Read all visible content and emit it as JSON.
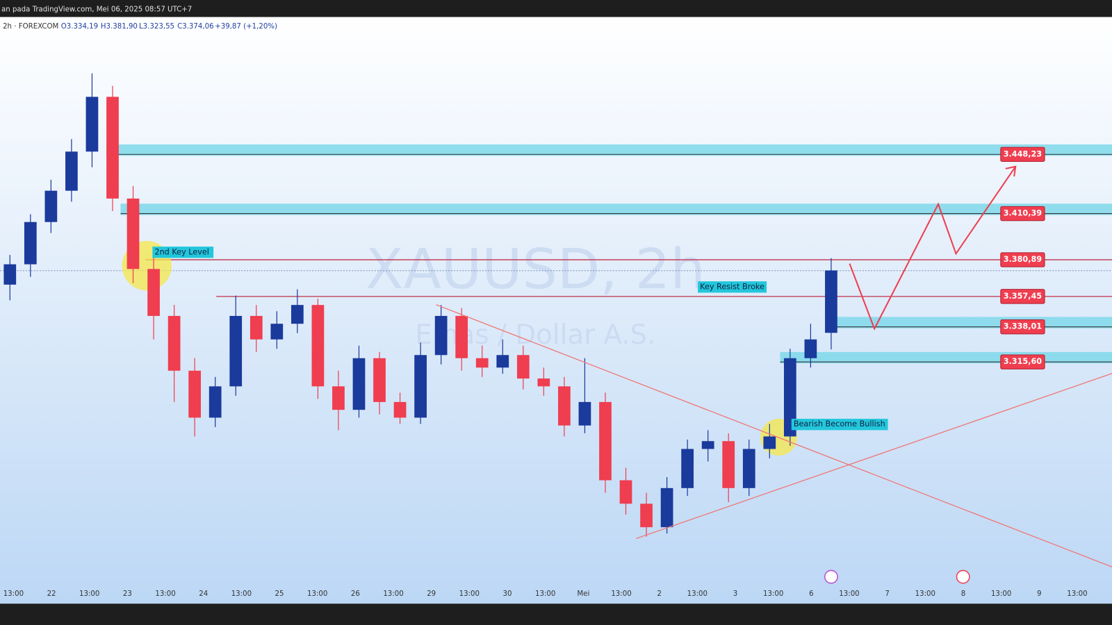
{
  "header": {
    "publisher": "an pada TradingView.com, Mei 06, 2025 08:57 UTC+7"
  },
  "legend": {
    "symbol": "2h · FOREXCOM",
    "open": "O3.334,19",
    "high": "H3.381,90",
    "low": "L3.323,55",
    "close": "C3.374,06",
    "change": "+39,87 (+1,20%)"
  },
  "watermark": {
    "title": "XAUUSD, 2h",
    "subtitle": "Emas / Dollar A.S."
  },
  "annotations": [
    "2nd Key Level",
    "Key Resist Broke",
    "Bearish Become Bullish"
  ],
  "chart_data": {
    "type": "candlestick",
    "ylim": [
      3162,
      3536
    ],
    "up_color": "#1a3a9c",
    "down_color": "#ef3e4f",
    "candles": [
      {
        "open": 3365,
        "high": 3384,
        "low": 3355,
        "close": 3378
      },
      {
        "open": 3378,
        "high": 3410,
        "low": 3370,
        "close": 3405
      },
      {
        "open": 3405,
        "high": 3432,
        "low": 3398,
        "close": 3425
      },
      {
        "open": 3425,
        "high": 3458,
        "low": 3418,
        "close": 3450
      },
      {
        "open": 3450,
        "high": 3500,
        "low": 3440,
        "close": 3485
      },
      {
        "open": 3485,
        "high": 3492,
        "low": 3412,
        "close": 3420
      },
      {
        "open": 3420,
        "high": 3428,
        "low": 3366,
        "close": 3375
      },
      {
        "open": 3375,
        "high": 3388,
        "low": 3330,
        "close": 3345
      },
      {
        "open": 3345,
        "high": 3352,
        "low": 3290,
        "close": 3310
      },
      {
        "open": 3310,
        "high": 3318,
        "low": 3268,
        "close": 3280
      },
      {
        "open": 3280,
        "high": 3306,
        "low": 3274,
        "close": 3300
      },
      {
        "open": 3300,
        "high": 3358,
        "low": 3294,
        "close": 3345
      },
      {
        "open": 3345,
        "high": 3352,
        "low": 3322,
        "close": 3330
      },
      {
        "open": 3330,
        "high": 3348,
        "low": 3324,
        "close": 3340
      },
      {
        "open": 3340,
        "high": 3362,
        "low": 3334,
        "close": 3352
      },
      {
        "open": 3352,
        "high": 3356,
        "low": 3292,
        "close": 3300
      },
      {
        "open": 3300,
        "high": 3310,
        "low": 3272,
        "close": 3285
      },
      {
        "open": 3285,
        "high": 3326,
        "low": 3280,
        "close": 3318
      },
      {
        "open": 3318,
        "high": 3322,
        "low": 3282,
        "close": 3290
      },
      {
        "open": 3290,
        "high": 3296,
        "low": 3276,
        "close": 3280
      },
      {
        "open": 3280,
        "high": 3328,
        "low": 3276,
        "close": 3320
      },
      {
        "open": 3320,
        "high": 3352,
        "low": 3314,
        "close": 3345
      },
      {
        "open": 3345,
        "high": 3350,
        "low": 3310,
        "close": 3318
      },
      {
        "open": 3318,
        "high": 3326,
        "low": 3306,
        "close": 3312
      },
      {
        "open": 3312,
        "high": 3330,
        "low": 3308,
        "close": 3320
      },
      {
        "open": 3320,
        "high": 3326,
        "low": 3298,
        "close": 3305
      },
      {
        "open": 3305,
        "high": 3312,
        "low": 3294,
        "close": 3300
      },
      {
        "open": 3300,
        "high": 3306,
        "low": 3268,
        "close": 3275
      },
      {
        "open": 3275,
        "high": 3318,
        "low": 3270,
        "close": 3290
      },
      {
        "open": 3290,
        "high": 3296,
        "low": 3232,
        "close": 3240
      },
      {
        "open": 3240,
        "high": 3248,
        "low": 3218,
        "close": 3225
      },
      {
        "open": 3225,
        "high": 3232,
        "low": 3204,
        "close": 3210
      },
      {
        "open": 3210,
        "high": 3242,
        "low": 3206,
        "close": 3235
      },
      {
        "open": 3235,
        "high": 3266,
        "low": 3230,
        "close": 3260
      },
      {
        "open": 3260,
        "high": 3272,
        "low": 3252,
        "close": 3265
      },
      {
        "open": 3265,
        "high": 3270,
        "low": 3226,
        "close": 3235
      },
      {
        "open": 3235,
        "high": 3266,
        "low": 3230,
        "close": 3260
      },
      {
        "open": 3260,
        "high": 3276,
        "low": 3254,
        "close": 3268
      },
      {
        "open": 3268,
        "high": 3324,
        "low": 3262,
        "close": 3318
      },
      {
        "open": 3318,
        "high": 3340,
        "low": 3312,
        "close": 3330
      },
      {
        "open": 3334.19,
        "high": 3381.9,
        "low": 3323.55,
        "close": 3374.06
      }
    ],
    "levels": [
      {
        "value": 3448.23,
        "label": "3.448,23",
        "style": "zone"
      },
      {
        "value": 3410.39,
        "label": "3.410,39",
        "style": "zone"
      },
      {
        "value": 3380.89,
        "label": "3.380,89",
        "style": "line"
      },
      {
        "value": 3357.45,
        "label": "3.357,45",
        "style": "line"
      },
      {
        "value": 3338.01,
        "label": "3.338,01",
        "style": "zone"
      },
      {
        "value": 3315.6,
        "label": "3.315,60",
        "style": "zone"
      }
    ],
    "categories": [
      "13:00",
      "22",
      "13:00",
      "23",
      "13:00",
      "24",
      "13:00",
      "25",
      "13:00",
      "26",
      "13:00",
      "29",
      "13:00",
      "30",
      "13:00",
      "Mei",
      "13:00",
      "2",
      "13:00",
      "3",
      "13:00",
      "6",
      "13:00",
      "7",
      "13:00",
      "8",
      "13:00",
      "9",
      "13:00"
    ]
  }
}
